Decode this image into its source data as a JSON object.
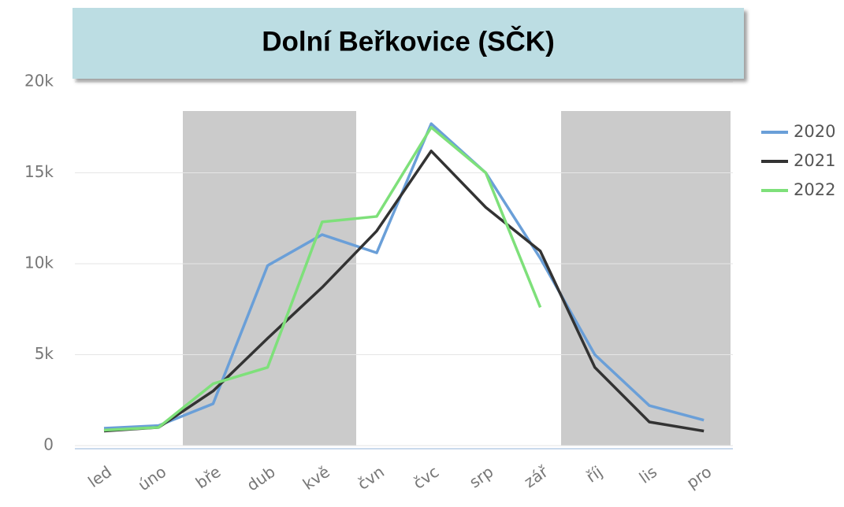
{
  "chart_data": {
    "type": "line",
    "title": "Dolní Beřkovice (SČK)",
    "categories": [
      "led",
      "úno",
      "bře",
      "dub",
      "kvě",
      "čvn",
      "čvc",
      "srp",
      "zář",
      "říj",
      "lis",
      "pro"
    ],
    "series": [
      {
        "name": "2020",
        "color": "#6a9fd8",
        "values": [
          950,
          1100,
          2300,
          9900,
          11600,
          10600,
          17700,
          15000,
          10300,
          5000,
          2200,
          1400
        ]
      },
      {
        "name": "2021",
        "color": "#333333",
        "values": [
          800,
          1000,
          3000,
          5900,
          8700,
          11800,
          16200,
          13100,
          10700,
          4300,
          1300,
          800
        ]
      },
      {
        "name": "2022",
        "color": "#7ee07a",
        "values": [
          850,
          1000,
          3400,
          4300,
          12300,
          12600,
          17500,
          15000,
          7600,
          null,
          null,
          null
        ]
      }
    ],
    "ylim": [
      0,
      20000
    ],
    "yticks": [
      0,
      {
        "value": 5000,
        "label": "5k"
      },
      {
        "value": 10000,
        "label": "10k"
      },
      {
        "value": 15000,
        "label": "15k"
      },
      {
        "value": 20000,
        "label": "20k"
      }
    ],
    "grid": true
  }
}
